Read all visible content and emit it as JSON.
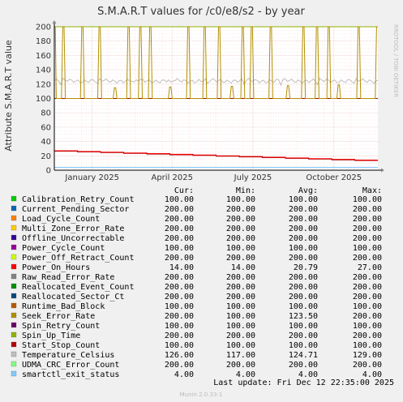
{
  "chart_data": {
    "type": "line",
    "title": "S.M.A.R.T values for /c0/e8/s2 - by year",
    "ylabel": "Attribute S.M.A.R.T value",
    "ylim": [
      0,
      200
    ],
    "yticks": [
      "0",
      "20",
      "40",
      "60",
      "80",
      "100",
      "120",
      "140",
      "160",
      "180",
      "200"
    ],
    "x_tick_labels": [
      "January 2025",
      "April 2025",
      "July 2025",
      "October 2025"
    ],
    "watermark": "RRDTOOL / TOBI OETIKER",
    "grid": true,
    "legend_columns": [
      "Cur:",
      "Min:",
      "Avg:",
      "Max:"
    ],
    "series": [
      {
        "name": "Calibration_Retry_Count",
        "color": "#00cc00",
        "cur": "100.00",
        "min": "100.00",
        "avg": "100.00",
        "max": "100.00"
      },
      {
        "name": "Current_Pending_Sector",
        "color": "#0066b3",
        "cur": "200.00",
        "min": "200.00",
        "avg": "200.00",
        "max": "200.00"
      },
      {
        "name": "Load_Cycle_Count",
        "color": "#ff8000",
        "cur": "200.00",
        "min": "200.00",
        "avg": "200.00",
        "max": "200.00"
      },
      {
        "name": "Multi_Zone_Error_Rate",
        "color": "#ffcc00",
        "cur": "200.00",
        "min": "200.00",
        "avg": "200.00",
        "max": "200.00"
      },
      {
        "name": "Offline_Uncorrectable",
        "color": "#330099",
        "cur": "200.00",
        "min": "200.00",
        "avg": "200.00",
        "max": "200.00"
      },
      {
        "name": "Power_Cycle_Count",
        "color": "#990099",
        "cur": "100.00",
        "min": "100.00",
        "avg": "100.00",
        "max": "100.00"
      },
      {
        "name": "Power_Off_Retract_Count",
        "color": "#ccff00",
        "cur": "200.00",
        "min": "200.00",
        "avg": "200.00",
        "max": "200.00"
      },
      {
        "name": "Power_On_Hours",
        "color": "#ff0000",
        "cur": "14.00",
        "min": "14.00",
        "avg": "20.79",
        "max": "27.00"
      },
      {
        "name": "Raw_Read_Error_Rate",
        "color": "#808080",
        "cur": "200.00",
        "min": "200.00",
        "avg": "200.00",
        "max": "200.00"
      },
      {
        "name": "Reallocated_Event_Count",
        "color": "#008f00",
        "cur": "200.00",
        "min": "200.00",
        "avg": "200.00",
        "max": "200.00"
      },
      {
        "name": "Reallocated_Sector_Ct",
        "color": "#00487d",
        "cur": "200.00",
        "min": "200.00",
        "avg": "200.00",
        "max": "200.00"
      },
      {
        "name": "Runtime_Bad_Block",
        "color": "#b35a00",
        "cur": "100.00",
        "min": "100.00",
        "avg": "100.00",
        "max": "100.00"
      },
      {
        "name": "Seek_Error_Rate",
        "color": "#b38f00",
        "cur": "200.00",
        "min": "100.00",
        "avg": "123.50",
        "max": "200.00"
      },
      {
        "name": "Spin_Retry_Count",
        "color": "#6b006b",
        "cur": "100.00",
        "min": "100.00",
        "avg": "100.00",
        "max": "100.00"
      },
      {
        "name": "Spin_Up_Time",
        "color": "#8fb300",
        "cur": "200.00",
        "min": "200.00",
        "avg": "200.00",
        "max": "200.00"
      },
      {
        "name": "Start_Stop_Count",
        "color": "#b30000",
        "cur": "100.00",
        "min": "100.00",
        "avg": "100.00",
        "max": "100.00"
      },
      {
        "name": "Temperature_Celsius",
        "color": "#bebebe",
        "cur": "126.00",
        "min": "117.00",
        "avg": "124.71",
        "max": "129.00"
      },
      {
        "name": "UDMA_CRC_Error_Count",
        "color": "#80ff80",
        "cur": "200.00",
        "min": "200.00",
        "avg": "200.00",
        "max": "200.00"
      },
      {
        "name": "smartctl_exit_status",
        "color": "#80c9ff",
        "cur": "4.00",
        "min": "4.00",
        "avg": "4.00",
        "max": "4.00"
      }
    ],
    "last_update": "Last update:  Fri Dec 12 22:35:00 2025",
    "footer": "Munin 2.0.33-1"
  }
}
